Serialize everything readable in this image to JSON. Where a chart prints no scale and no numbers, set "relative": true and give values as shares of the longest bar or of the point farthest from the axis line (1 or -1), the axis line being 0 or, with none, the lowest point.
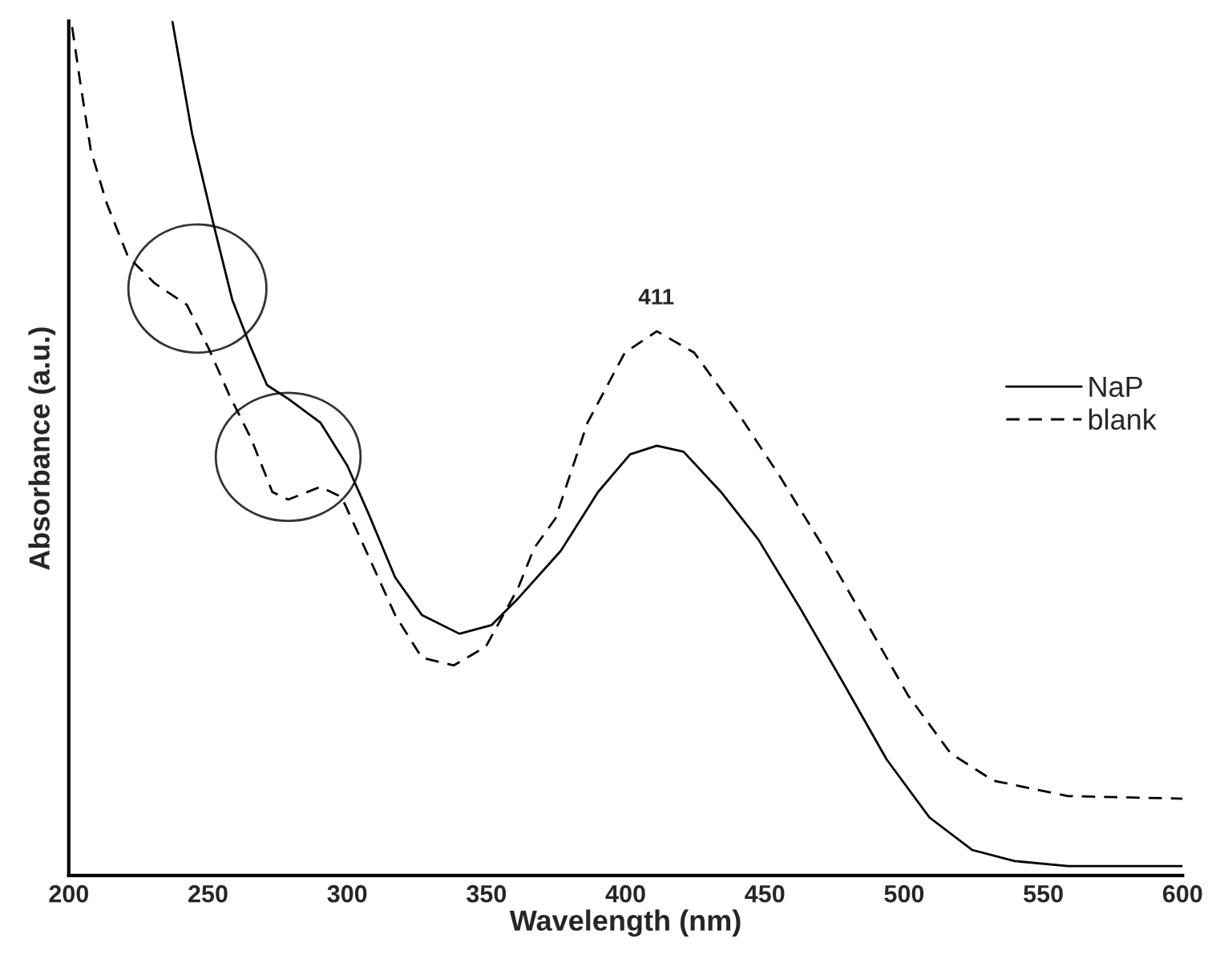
{
  "chart_data": {
    "type": "line",
    "xlabel": "Wavelength (nm)",
    "ylabel": "Absorbance (a.u.)",
    "relative": true,
    "xlim": [
      200,
      600
    ],
    "xticks": [
      200,
      250,
      300,
      350,
      400,
      450,
      500,
      550,
      600
    ],
    "grid": false,
    "legend": "right",
    "marker": "none",
    "annotations": [
      {
        "text": "411",
        "x": 411,
        "y": 0.637
      }
    ],
    "series": [
      {
        "name": "NaP",
        "color": "#000000",
        "line_style": "solid",
        "x": [
          237.2,
          244.3,
          252.0,
          258.7,
          265.4,
          271.2,
          278.8,
          290.4,
          300,
          307.6,
          317.2,
          326.8,
          340.3,
          351.8,
          361.3,
          376.7,
          390.1,
          401.6,
          411.2,
          420.8,
          434.2,
          447.7,
          463.0,
          478.4,
          493.7,
          509.1,
          524.4,
          539.7,
          558.9,
          600
        ],
        "values": [
          1.0,
          0.868,
          0.762,
          0.674,
          0.618,
          0.574,
          0.558,
          0.53,
          0.48,
          0.424,
          0.349,
          0.305,
          0.283,
          0.293,
          0.324,
          0.38,
          0.449,
          0.493,
          0.503,
          0.496,
          0.449,
          0.393,
          0.311,
          0.224,
          0.136,
          0.068,
          0.03,
          0.017,
          0.011,
          0.011
        ]
      },
      {
        "name": "blank",
        "color": "#000000",
        "line_style": "dashed",
        "x": [
          201.2,
          204.0,
          207.9,
          213.6,
          221.3,
          230.9,
          242.4,
          250.1,
          257.7,
          265.4,
          273.1,
          278.8,
          290.4,
          298.0,
          307.6,
          317.2,
          326.8,
          338.3,
          349.8,
          361.3,
          367.1,
          374.8,
          386.3,
          399.7,
          411.2,
          424.6,
          440.0,
          455.4,
          470.7,
          486.0,
          501.4,
          516.7,
          532.1,
          558.9,
          600
        ],
        "values": [
          0.993,
          0.931,
          0.849,
          0.787,
          0.724,
          0.693,
          0.668,
          0.618,
          0.562,
          0.512,
          0.449,
          0.44,
          0.455,
          0.443,
          0.374,
          0.305,
          0.255,
          0.246,
          0.268,
          0.336,
          0.383,
          0.418,
          0.53,
          0.612,
          0.637,
          0.612,
          0.543,
          0.467,
          0.386,
          0.299,
          0.211,
          0.143,
          0.111,
          0.093,
          0.09
        ]
      }
    ]
  }
}
